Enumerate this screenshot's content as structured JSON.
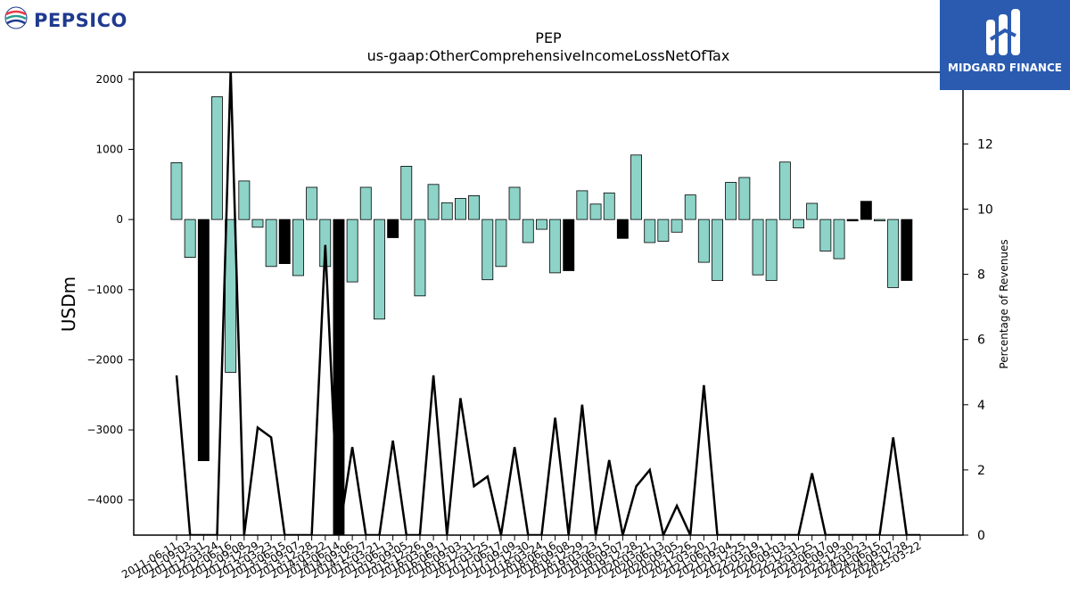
{
  "brand": {
    "company_name": "PEPSICO",
    "watermark_name": "MIDGARD FINANCE"
  },
  "colors": {
    "positive_bar": "#8dd3c7",
    "negative_bar": "#000000",
    "line": "#000000",
    "banner": "#2a5bb0",
    "pepsico_text": "#1f3a8f"
  },
  "chart_data": {
    "type": "bar",
    "title": "PEP",
    "subtitle": "us-gaap:OtherComprehensiveIncomeLossNetOfTax",
    "ylabel": "USDm",
    "y2label": "Percentage of Revenues",
    "ylim": [
      -4500,
      2100
    ],
    "y2lim": [
      0,
      14.2
    ],
    "yticks": [
      -4000,
      -3000,
      -2000,
      -1000,
      0,
      1000,
      2000
    ],
    "y2ticks": [
      0,
      2,
      4,
      6,
      8,
      10,
      12
    ],
    "categories": [
      "2011-06-11",
      "2011-09-03",
      "2011-12-31",
      "2012-03-24",
      "2012-06-16",
      "2012-09-08",
      "2012-12-29",
      "2013-03-23",
      "2013-06-15",
      "2013-09-07",
      "2013-12-28",
      "2014-03-22",
      "2014-06-14",
      "2014-09-06",
      "2014-12-27",
      "2015-03-21",
      "2015-06-13",
      "2015-09-05",
      "2015-12-26",
      "2016-03-19",
      "2016-06-11",
      "2016-09-03",
      "2016-12-31",
      "2017-03-25",
      "2017-06-17",
      "2017-09-09",
      "2017-12-30",
      "2018-03-24",
      "2018-06-16",
      "2018-09-08",
      "2018-12-29",
      "2019-03-23",
      "2019-06-15",
      "2019-09-07",
      "2019-12-28",
      "2020-03-21",
      "2020-06-13",
      "2020-09-05",
      "2020-12-26",
      "2021-03-20",
      "2021-06-12",
      "2021-09-04",
      "2021-12-25",
      "2022-03-19",
      "2022-06-11",
      "2022-09-03",
      "2022-12-31",
      "2023-03-25",
      "2023-06-17",
      "2023-09-09",
      "2023-12-30",
      "2024-03-23",
      "2024-06-15",
      "2024-09-07",
      "2024-12-28",
      "2025-03-22"
    ],
    "series": [
      {
        "kind": "bar",
        "values": [
          810,
          -540,
          -3440,
          1750,
          -2180,
          550,
          -110,
          -670,
          -630,
          -800,
          460,
          -670,
          -4500,
          -890,
          460,
          -1420,
          -260,
          760,
          -1090,
          500,
          240,
          300,
          340,
          -860,
          -670,
          460,
          -330,
          -140,
          -760,
          -730,
          410,
          220,
          380,
          -270,
          920,
          -330,
          -310,
          -180,
          350,
          -610,
          -870,
          530,
          600,
          -790,
          -870,
          820,
          -120,
          230,
          -450,
          -560,
          -20,
          260,
          -20,
          -970,
          -870,
          0
        ],
        "order_note": "values mapped to categories by index"
      },
      {
        "kind": "line",
        "axis": "right",
        "values": [
          4.9,
          0,
          0,
          0,
          14.3,
          0,
          3.3,
          3.0,
          0,
          0,
          0,
          8.9,
          0,
          2.7,
          0,
          0,
          2.9,
          0,
          0,
          4.9,
          0,
          4.2,
          1.5,
          1.8,
          0,
          2.7,
          0,
          0,
          3.6,
          0,
          4.0,
          0,
          2.3,
          0,
          1.5,
          2.0,
          0,
          0.9,
          0,
          4.6,
          0,
          0,
          0,
          0,
          0,
          0,
          0,
          1.9,
          0,
          0,
          0,
          0,
          0,
          3.0,
          0,
          0
        ]
      }
    ]
  }
}
